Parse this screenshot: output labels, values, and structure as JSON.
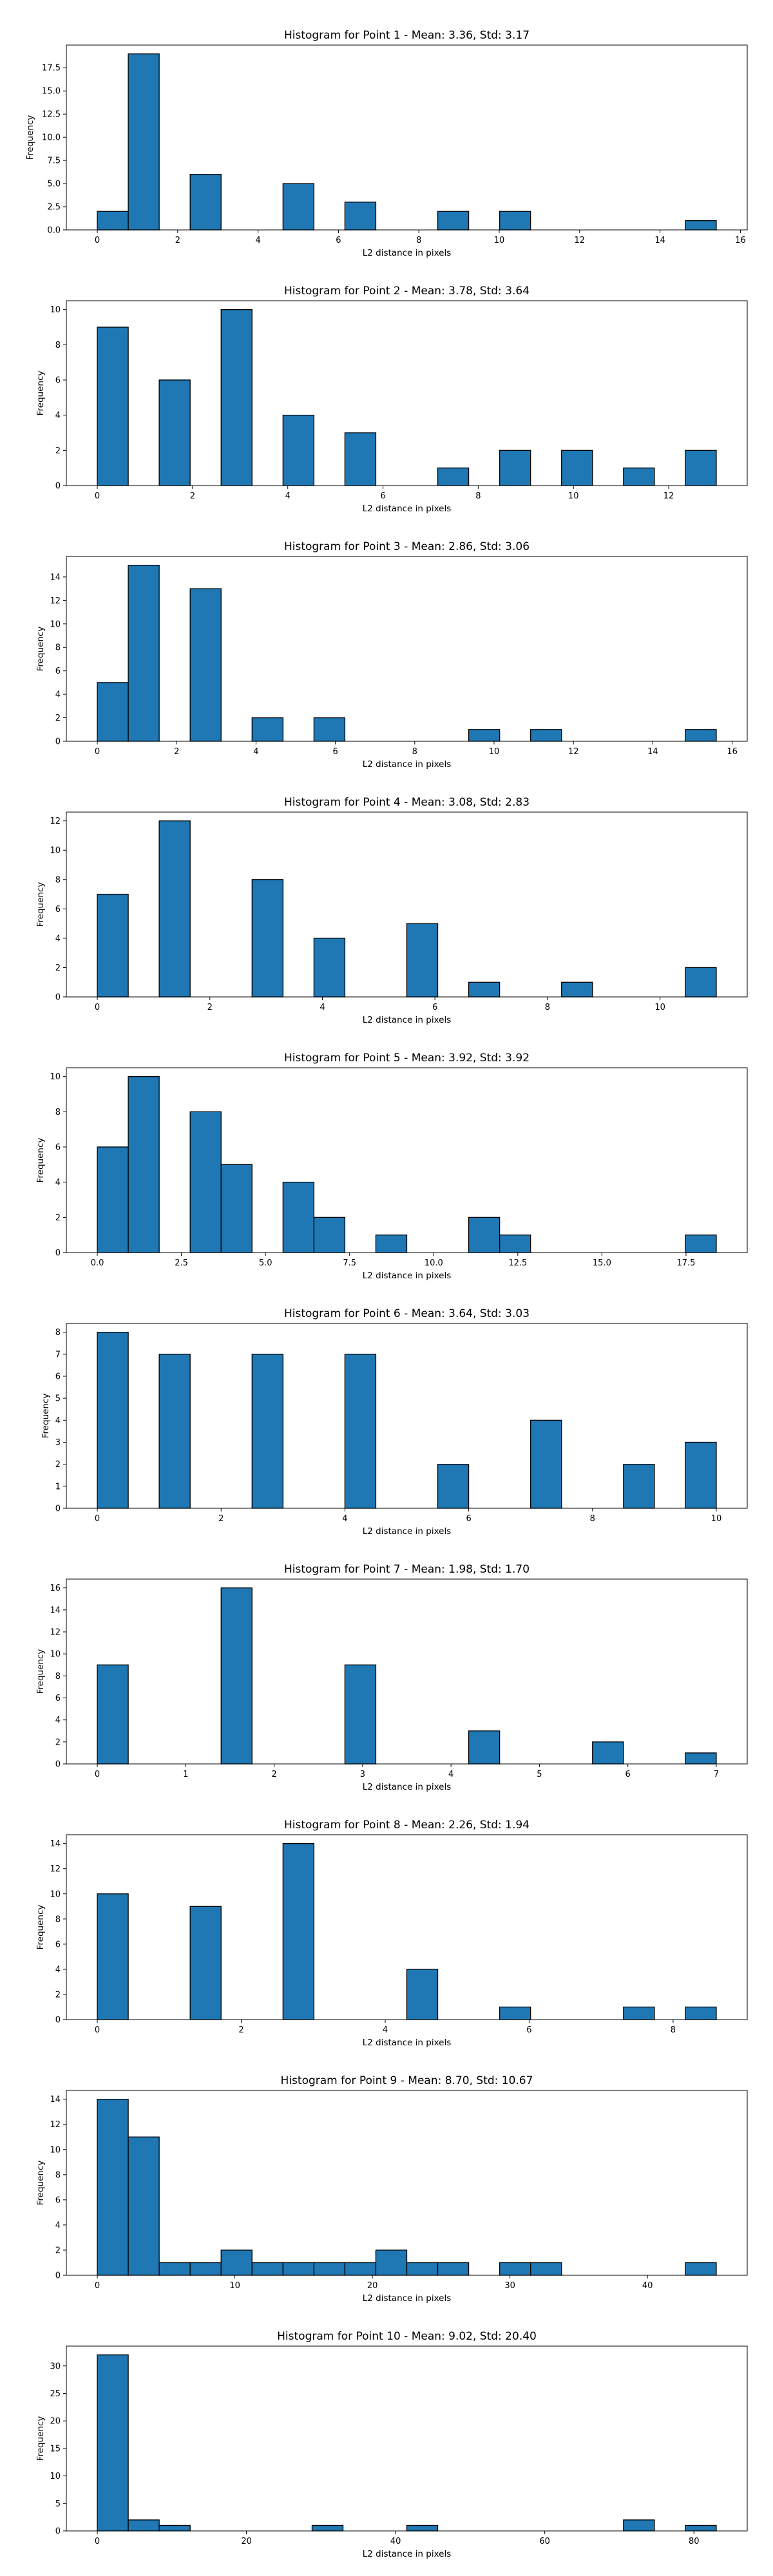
{
  "colors": {
    "bar_fill": "#1f77b4",
    "bar_edge": "#000000",
    "axes": "#000000",
    "background": "#ffffff"
  },
  "chart_data": [
    {
      "type": "bar",
      "title": "Histogram for Point 1 - Mean: 3.36, Std: 3.17",
      "xlabel": "L2 distance in pixels",
      "ylabel": "Frequency",
      "xlim": [
        -0.77,
        16.17
      ],
      "ylim": [
        0,
        19.95
      ],
      "xticks": [
        0,
        2,
        4,
        6,
        8,
        10,
        12,
        14,
        16
      ],
      "xtick_labels": [
        "0",
        "2",
        "4",
        "6",
        "8",
        "10",
        "12",
        "14",
        "16"
      ],
      "yticks": [
        0,
        2.5,
        5,
        7.5,
        10,
        12.5,
        15,
        17.5
      ],
      "ytick_labels": [
        "0.0",
        "2.5",
        "5.0",
        "7.5",
        "10.0",
        "12.5",
        "15.0",
        "17.5"
      ],
      "bin_width": 0.77,
      "bin_starts": [
        0,
        0.77,
        2.31,
        4.62,
        6.16,
        8.47,
        10.01,
        14.63
      ],
      "values": [
        2,
        19,
        6,
        5,
        3,
        2,
        2,
        1
      ]
    },
    {
      "type": "bar",
      "title": "Histogram for Point 2 - Mean: 3.78, Std: 3.64",
      "xlabel": "L2 distance in pixels",
      "ylabel": "Frequency",
      "xlim": [
        -0.65,
        13.65
      ],
      "ylim": [
        0,
        10.5
      ],
      "xticks": [
        0,
        2,
        4,
        6,
        8,
        10,
        12
      ],
      "xtick_labels": [
        "0",
        "2",
        "4",
        "6",
        "8",
        "10",
        "12"
      ],
      "yticks": [
        0,
        2,
        4,
        6,
        8,
        10
      ],
      "ytick_labels": [
        "0",
        "2",
        "4",
        "6",
        "8",
        "10"
      ],
      "bin_width": 0.65,
      "bin_starts": [
        0,
        1.3,
        2.6,
        3.9,
        5.2,
        7.15,
        8.45,
        9.75,
        11.05,
        12.35
      ],
      "values": [
        9,
        6,
        10,
        4,
        3,
        1,
        2,
        2,
        1,
        2
      ]
    },
    {
      "type": "bar",
      "title": "Histogram for Point 3 - Mean: 2.86, Std: 3.06",
      "xlabel": "L2 distance in pixels",
      "ylabel": "Frequency",
      "xlim": [
        -0.78,
        16.38
      ],
      "ylim": [
        0,
        15.75
      ],
      "xticks": [
        0,
        2,
        4,
        6,
        8,
        10,
        12,
        14,
        16
      ],
      "xtick_labels": [
        "0",
        "2",
        "4",
        "6",
        "8",
        "10",
        "12",
        "14",
        "16"
      ],
      "yticks": [
        0,
        2,
        4,
        6,
        8,
        10,
        12,
        14
      ],
      "ytick_labels": [
        "0",
        "2",
        "4",
        "6",
        "8",
        "10",
        "12",
        "14"
      ],
      "bin_width": 0.78,
      "bin_starts": [
        0,
        0.78,
        2.34,
        3.9,
        5.46,
        9.36,
        10.92,
        14.82
      ],
      "values": [
        5,
        15,
        13,
        2,
        2,
        1,
        1,
        1
      ]
    },
    {
      "type": "bar",
      "title": "Histogram for Point 4 - Mean: 3.08, Std: 2.83",
      "xlabel": "L2 distance in pixels",
      "ylabel": "Frequency",
      "xlim": [
        -0.55,
        11.55
      ],
      "ylim": [
        0,
        12.6
      ],
      "xticks": [
        0,
        2,
        4,
        6,
        8,
        10
      ],
      "xtick_labels": [
        "0",
        "2",
        "4",
        "6",
        "8",
        "10"
      ],
      "yticks": [
        0,
        2,
        4,
        6,
        8,
        10,
        12
      ],
      "ytick_labels": [
        "0",
        "2",
        "4",
        "6",
        "8",
        "10",
        "12"
      ],
      "bin_width": 0.55,
      "bin_starts": [
        0,
        1.1,
        2.75,
        3.85,
        5.5,
        6.6,
        8.25,
        10.45
      ],
      "values": [
        7,
        12,
        8,
        4,
        5,
        1,
        1,
        2
      ]
    },
    {
      "type": "bar",
      "title": "Histogram for Point 5 - Mean: 3.92, Std: 3.92",
      "xlabel": "L2 distance in pixels",
      "ylabel": "Frequency",
      "xlim": [
        -0.92,
        19.32
      ],
      "ylim": [
        0,
        10.5
      ],
      "xticks": [
        0,
        2.5,
        5,
        7.5,
        10,
        12.5,
        15,
        17.5
      ],
      "xtick_labels": [
        "0.0",
        "2.5",
        "5.0",
        "7.5",
        "10.0",
        "12.5",
        "15.0",
        "17.5"
      ],
      "yticks": [
        0,
        2,
        4,
        6,
        8,
        10
      ],
      "ytick_labels": [
        "0",
        "2",
        "4",
        "6",
        "8",
        "10"
      ],
      "bin_width": 0.92,
      "bin_starts": [
        0,
        0.92,
        2.76,
        3.68,
        5.52,
        6.44,
        8.28,
        11.04,
        11.96,
        17.48
      ],
      "values": [
        6,
        10,
        8,
        5,
        4,
        2,
        1,
        2,
        1,
        1
      ]
    },
    {
      "type": "bar",
      "title": "Histogram for Point 6 - Mean: 3.64, Std: 3.03",
      "xlabel": "L2 distance in pixels",
      "ylabel": "Frequency",
      "xlim": [
        -0.5,
        10.5
      ],
      "ylim": [
        0,
        8.4
      ],
      "xticks": [
        0,
        2,
        4,
        6,
        8,
        10
      ],
      "xtick_labels": [
        "0",
        "2",
        "4",
        "6",
        "8",
        "10"
      ],
      "yticks": [
        0,
        1,
        2,
        3,
        4,
        5,
        6,
        7,
        8
      ],
      "ytick_labels": [
        "0",
        "1",
        "2",
        "3",
        "4",
        "5",
        "6",
        "7",
        "8"
      ],
      "bin_width": 0.5,
      "bin_starts": [
        0,
        1,
        2.5,
        4,
        5.5,
        7,
        8.5,
        9.5
      ],
      "values": [
        8,
        7,
        7,
        7,
        2,
        4,
        2,
        3
      ]
    },
    {
      "type": "bar",
      "title": "Histogram for Point 7 - Mean: 1.98, Std: 1.70",
      "xlabel": "L2 distance in pixels",
      "ylabel": "Frequency",
      "xlim": [
        -0.35,
        7.35
      ],
      "ylim": [
        0,
        16.8
      ],
      "xticks": [
        0,
        1,
        2,
        3,
        4,
        5,
        6,
        7
      ],
      "xtick_labels": [
        "0",
        "1",
        "2",
        "3",
        "4",
        "5",
        "6",
        "7"
      ],
      "yticks": [
        0,
        2,
        4,
        6,
        8,
        10,
        12,
        14,
        16
      ],
      "ytick_labels": [
        "0",
        "2",
        "4",
        "6",
        "8",
        "10",
        "12",
        "14",
        "16"
      ],
      "bin_width": 0.35,
      "bin_starts": [
        0,
        1.4,
        2.8,
        4.2,
        5.6,
        6.65
      ],
      "values": [
        9,
        16,
        9,
        3,
        2,
        1
      ]
    },
    {
      "type": "bar",
      "title": "Histogram for Point 8 - Mean: 2.26, Std: 1.94",
      "xlabel": "L2 distance in pixels",
      "ylabel": "Frequency",
      "xlim": [
        -0.43,
        9.03
      ],
      "ylim": [
        0,
        14.7
      ],
      "xticks": [
        0,
        2,
        4,
        6,
        8
      ],
      "xtick_labels": [
        "0",
        "2",
        "4",
        "6",
        "8"
      ],
      "yticks": [
        0,
        2,
        4,
        6,
        8,
        10,
        12,
        14
      ],
      "ytick_labels": [
        "0",
        "2",
        "4",
        "6",
        "8",
        "10",
        "12",
        "14"
      ],
      "bin_width": 0.43,
      "bin_starts": [
        0,
        1.29,
        2.58,
        4.3,
        5.59,
        7.31,
        8.17
      ],
      "values": [
        10,
        9,
        14,
        4,
        1,
        1,
        1
      ]
    },
    {
      "type": "bar",
      "title": "Histogram for Point 9 - Mean: 8.70, Std: 10.67",
      "xlabel": "L2 distance in pixels",
      "ylabel": "Frequency",
      "xlim": [
        -2.25,
        47.25
      ],
      "ylim": [
        0,
        14.7
      ],
      "xticks": [
        0,
        10,
        20,
        30,
        40
      ],
      "xtick_labels": [
        "0",
        "10",
        "20",
        "30",
        "40"
      ],
      "yticks": [
        0,
        2,
        4,
        6,
        8,
        10,
        12,
        14
      ],
      "ytick_labels": [
        "0",
        "2",
        "4",
        "6",
        "8",
        "10",
        "12",
        "14"
      ],
      "bin_width": 2.25,
      "bin_starts": [
        0,
        2.25,
        4.5,
        6.75,
        9,
        11.25,
        13.5,
        15.75,
        18,
        20.25,
        22.5,
        24.75,
        29.25,
        31.5,
        42.75
      ],
      "values": [
        14,
        11,
        1,
        1,
        2,
        1,
        1,
        1,
        1,
        2,
        1,
        1,
        1,
        1,
        1
      ]
    },
    {
      "type": "bar",
      "title": "Histogram for Point 10 - Mean: 9.02, Std: 20.40",
      "xlabel": "L2 distance in pixels",
      "ylabel": "Frequency",
      "xlim": [
        -4.15,
        87.15
      ],
      "ylim": [
        0,
        33.6
      ],
      "xticks": [
        0,
        20,
        40,
        60,
        80
      ],
      "xtick_labels": [
        "0",
        "20",
        "40",
        "60",
        "80"
      ],
      "yticks": [
        0,
        5,
        10,
        15,
        20,
        25,
        30
      ],
      "ytick_labels": [
        "0",
        "5",
        "10",
        "15",
        "20",
        "25",
        "30"
      ],
      "bin_width": 4.15,
      "bin_starts": [
        0,
        4.15,
        8.3,
        28.8,
        41.5,
        70.55,
        78.85
      ],
      "values": [
        32,
        2,
        1,
        1,
        1,
        2,
        1
      ]
    }
  ]
}
